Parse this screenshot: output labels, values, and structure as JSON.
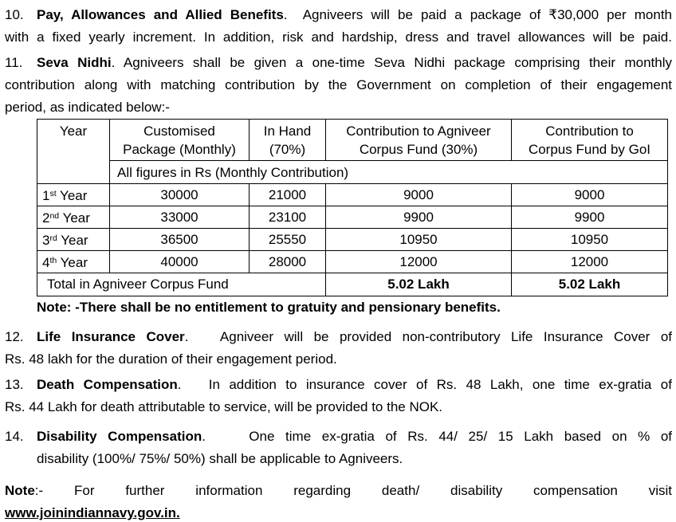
{
  "document": {
    "background": "#ffffff",
    "text_color": "#000000"
  },
  "paragraphs_top": [
    {
      "name": "item-10",
      "number": "10.",
      "lines": [
        {
          "justify": true,
          "segments": [
            {
              "text": "Pay, Allowances and Allied Benefits",
              "bold": true
            },
            {
              "text": ".  Agniveers will be paid a package of ₹30,000 per month",
              "bold": false
            }
          ]
        },
        {
          "justify": true,
          "segments": [
            {
              "text": "with a fixed yearly increment. In addition, risk and hardship, dress and travel allowances will be paid.",
              "bold": false
            }
          ]
        }
      ]
    },
    {
      "name": "item-11",
      "number": "11.",
      "lines": [
        {
          "justify": true,
          "segments": [
            {
              "text": "Seva Nidhi",
              "bold": true
            },
            {
              "text": ". Agniveers shall be given a one-time Seva Nidhi package comprising their monthly",
              "bold": false
            }
          ]
        },
        {
          "justify": true,
          "segments": [
            {
              "text": "contribution along with matching contribution by the Government on completion of their engagement",
              "bold": false
            }
          ]
        },
        {
          "justify": false,
          "segments": [
            {
              "text": "period, as indicated below:-",
              "bold": false
            }
          ]
        }
      ]
    }
  ],
  "table": {
    "header_year": "Year",
    "headers": [
      [
        "Customised",
        "Package (Monthly)"
      ],
      [
        "In Hand",
        "(70%)"
      ],
      [
        "Contribution to Agniveer",
        "Corpus Fund (30%)"
      ],
      [
        "Contribution to",
        "Corpus Fund by GoI"
      ]
    ],
    "subheader": "All figures in Rs (Monthly Contribution)",
    "rows": [
      {
        "year": {
          "num": "1",
          "ordinal": "st",
          "word": "Year"
        },
        "values": [
          "30000",
          "21000",
          "9000",
          "9000"
        ]
      },
      {
        "year": {
          "num": "2",
          "ordinal": "nd",
          "word": "Year"
        },
        "values": [
          "33000",
          "23100",
          "9900",
          "9900"
        ]
      },
      {
        "year": {
          "num": "3",
          "ordinal": "rd",
          "word": "Year"
        },
        "values": [
          "36500",
          "25550",
          "10950",
          "10950"
        ]
      },
      {
        "year": {
          "num": "4",
          "ordinal": "th",
          "word": "Year"
        },
        "values": [
          "40000",
          "28000",
          "12000",
          "12000"
        ]
      }
    ],
    "total": {
      "label": "Total in Agniveer Corpus Fund",
      "values": [
        "5.02 Lakh",
        "5.02 Lakh"
      ]
    }
  },
  "paragraphs_bottom": [
    {
      "name": "note-gratuity",
      "number": null,
      "lines": [
        {
          "justify": false,
          "segments": [
            {
              "text": "Note: -There shall be no entitlement to gratuity and pensionary benefits",
              "bold": true
            },
            {
              "text": ".",
              "bold": true
            }
          ]
        }
      ]
    },
    {
      "name": "item-12",
      "number": "12.",
      "lines": [
        {
          "justify": true,
          "segments": [
            {
              "text": "Life Insurance Cover",
              "bold": true
            },
            {
              "text": ".   Agniveer will be provided non-contributory Life Insurance Cover of",
              "bold": false
            }
          ]
        },
        {
          "justify": false,
          "segments": [
            {
              "text": "Rs. 48 lakh for the duration of their engagement period.",
              "bold": false
            }
          ]
        }
      ]
    },
    {
      "name": "item-13",
      "number": "13.",
      "lines": [
        {
          "justify": true,
          "segments": [
            {
              "text": "Death Compensation",
              "bold": true
            },
            {
              "text": ".   In addition to insurance cover of Rs. 48 Lakh, one time ex-gratia of",
              "bold": false
            }
          ]
        },
        {
          "justify": false,
          "segments": [
            {
              "text": "Rs. 44 Lakh for death attributable to service, will be provided to the NOK.",
              "bold": false
            }
          ]
        }
      ]
    },
    {
      "name": "item-14",
      "number": "14.",
      "lines": [
        {
          "justify": true,
          "segments": [
            {
              "text": "Disability Compensation",
              "bold": true
            },
            {
              "text": ".    One time ex-gratia of Rs. 44/ 25/ 15 Lakh based on % of",
              "bold": false
            }
          ]
        },
        {
          "justify": false,
          "segments": [
            {
              "text": "disability (100%/ 75%/ 50%) shall be applicable to Agniveers.",
              "bold": false
            }
          ]
        }
      ]
    },
    {
      "name": "note-visit",
      "number": null,
      "lines": [
        {
          "justify": true,
          "segments": [
            {
              "text": "Note",
              "bold": true
            },
            {
              "text": ":- For further information regarding death/ disability compensation visit",
              "bold": false
            }
          ]
        },
        {
          "justify": false,
          "segments": [
            {
              "text": "www.joinindiannavy.gov.in.",
              "bold": true,
              "underline": true,
              "link": true
            }
          ]
        }
      ]
    }
  ]
}
